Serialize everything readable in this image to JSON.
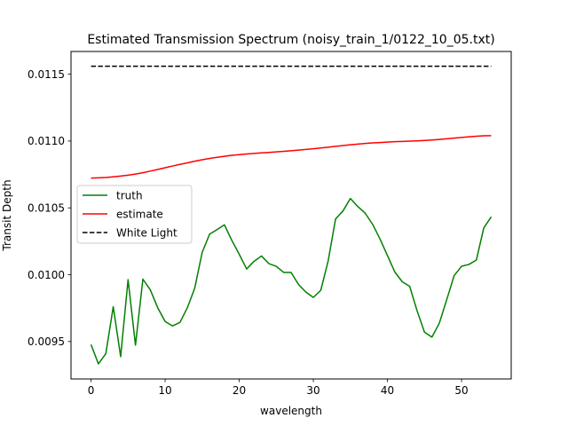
{
  "chart_data": {
    "type": "line",
    "title": "Estimated Transmission Spectrum (noisy_train_1/0122_10_05.txt)",
    "xlabel": "wavelength",
    "ylabel": "Transit Depth",
    "xlim": [
      -2.7,
      56.7
    ],
    "ylim": [
      0.00922,
      0.01167
    ],
    "xticks": [
      0,
      10,
      20,
      30,
      40,
      50
    ],
    "xtick_labels": [
      "0",
      "10",
      "20",
      "30",
      "40",
      "50"
    ],
    "yticks": [
      0.0095,
      0.01,
      0.0105,
      0.011,
      0.0115
    ],
    "ytick_labels": [
      "0.0095",
      "0.0100",
      "0.0105",
      "0.0110",
      "0.0115"
    ],
    "grid": false,
    "legend_position": "center-left",
    "x": [
      0,
      1,
      2,
      3,
      4,
      5,
      6,
      7,
      8,
      9,
      10,
      11,
      12,
      13,
      14,
      15,
      16,
      17,
      18,
      19,
      20,
      21,
      22,
      23,
      24,
      25,
      26,
      27,
      28,
      29,
      30,
      31,
      32,
      33,
      34,
      35,
      36,
      37,
      38,
      39,
      40,
      41,
      42,
      43,
      44,
      45,
      46,
      47,
      48,
      49,
      50,
      51,
      52,
      53,
      54
    ],
    "series": [
      {
        "name": "truth",
        "color": "#008000",
        "style": "solid",
        "values": [
          0.009477,
          0.009333,
          0.00941,
          0.00976,
          0.009387,
          0.009963,
          0.009473,
          0.009967,
          0.009887,
          0.009753,
          0.00965,
          0.009617,
          0.009643,
          0.009753,
          0.0099,
          0.010167,
          0.010303,
          0.010337,
          0.010373,
          0.010257,
          0.010153,
          0.010043,
          0.0101,
          0.01014,
          0.010083,
          0.010063,
          0.010017,
          0.010017,
          0.009927,
          0.00987,
          0.00983,
          0.009883,
          0.010103,
          0.010417,
          0.010477,
          0.01057,
          0.01051,
          0.01046,
          0.010377,
          0.010267,
          0.010143,
          0.01002,
          0.009947,
          0.009913,
          0.00973,
          0.00957,
          0.009533,
          0.009637,
          0.009813,
          0.009993,
          0.010063,
          0.010077,
          0.01011,
          0.01035,
          0.010433
        ]
      },
      {
        "name": "estimate",
        "color": "#ff0000",
        "style": "solid",
        "values": [
          0.010723,
          0.010725,
          0.010727,
          0.010732,
          0.010738,
          0.010745,
          0.010753,
          0.010763,
          0.010775,
          0.010787,
          0.0108,
          0.010813,
          0.010825,
          0.010837,
          0.010849,
          0.01086,
          0.01087,
          0.010878,
          0.010886,
          0.010893,
          0.010898,
          0.010903,
          0.010907,
          0.010911,
          0.010915,
          0.010919,
          0.010923,
          0.010927,
          0.010932,
          0.010937,
          0.010942,
          0.010948,
          0.010954,
          0.01096,
          0.010966,
          0.010972,
          0.010977,
          0.010982,
          0.010986,
          0.010989,
          0.010992,
          0.010995,
          0.010997,
          0.010999,
          0.011001,
          0.011004,
          0.011008,
          0.011012,
          0.011017,
          0.011022,
          0.011027,
          0.011032,
          0.011036,
          0.011039,
          0.01104
        ]
      },
      {
        "name": "White Light",
        "color": "#000000",
        "style": "dashed",
        "values": [
          0.01156,
          0.01156,
          0.01156,
          0.01156,
          0.01156,
          0.01156,
          0.01156,
          0.01156,
          0.01156,
          0.01156,
          0.01156,
          0.01156,
          0.01156,
          0.01156,
          0.01156,
          0.01156,
          0.01156,
          0.01156,
          0.01156,
          0.01156,
          0.01156,
          0.01156,
          0.01156,
          0.01156,
          0.01156,
          0.01156,
          0.01156,
          0.01156,
          0.01156,
          0.01156,
          0.01156,
          0.01156,
          0.01156,
          0.01156,
          0.01156,
          0.01156,
          0.01156,
          0.01156,
          0.01156,
          0.01156,
          0.01156,
          0.01156,
          0.01156,
          0.01156,
          0.01156,
          0.01156,
          0.01156,
          0.01156,
          0.01156,
          0.01156,
          0.01156,
          0.01156,
          0.01156,
          0.01156,
          0.01156
        ]
      }
    ]
  }
}
